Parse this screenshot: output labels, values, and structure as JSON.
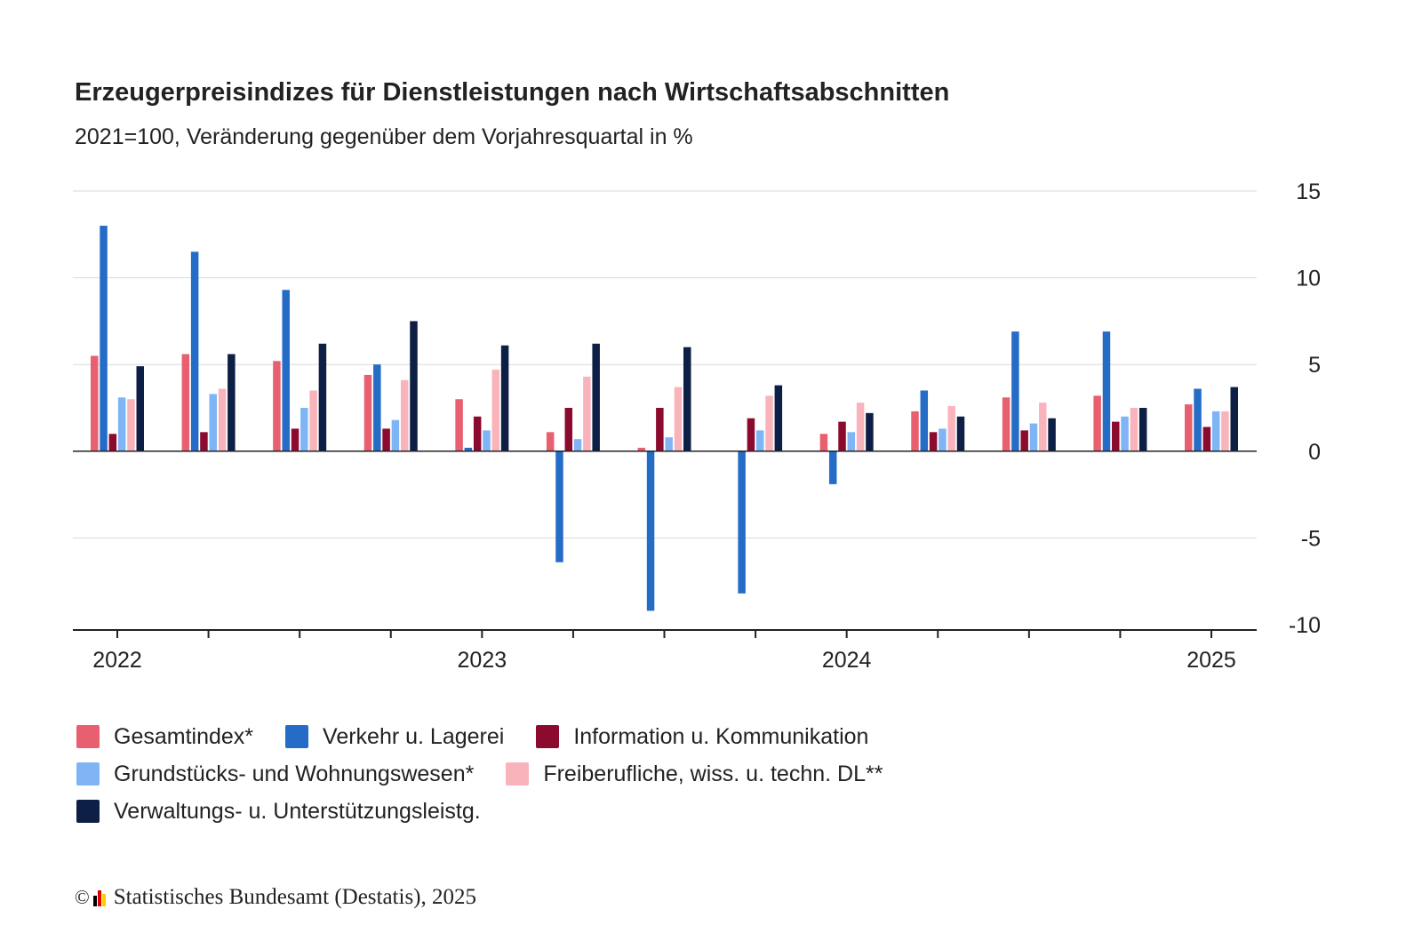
{
  "header": {
    "title": "Erzeugerpreisindizes für Dienstleistungen nach Wirtschaftsabschnitten",
    "subtitle": "2021=100, Veränderung gegenüber dem Vorjahresquartal in %"
  },
  "footer": {
    "copyright_symbol": "©",
    "source": "Statistisches Bundesamt (Destatis), 2025",
    "logo_colors": [
      "#000000",
      "#dd0000",
      "#ffcc00"
    ]
  },
  "chart_data": {
    "type": "bar",
    "title": "Erzeugerpreisindizes für Dienstleistungen nach Wirtschaftsabschnitten",
    "subtitle": "2021=100, Veränderung gegenüber dem Vorjahresquartal in %",
    "categories": [
      "2022 Q1",
      "2022 Q2",
      "2022 Q3",
      "2022 Q4",
      "2023 Q1",
      "2023 Q2",
      "2023 Q3",
      "2023 Q4",
      "2024 Q1",
      "2024 Q2",
      "2024 Q3",
      "2024 Q4",
      "2025 Q1"
    ],
    "x_tick_labels": [
      {
        "label": "2022",
        "category_index": 0
      },
      {
        "label": "2023",
        "category_index": 4
      },
      {
        "label": "2024",
        "category_index": 8
      },
      {
        "label": "2025",
        "category_index": 12
      }
    ],
    "ylim": [
      -10,
      15
    ],
    "y_ticks": [
      15,
      10,
      5,
      0,
      -5,
      -10
    ],
    "y_axis_position": "right",
    "grid": true,
    "legend_position": "bottom",
    "series": [
      {
        "name": "Gesamtindex*",
        "color": "#e8606f",
        "values": [
          5.5,
          5.6,
          5.2,
          4.4,
          3.0,
          1.1,
          0.2,
          null,
          1.0,
          2.3,
          3.1,
          3.2,
          2.7
        ]
      },
      {
        "name": "Verkehr u. Lagerei",
        "color": "#256cc7",
        "values": [
          13.0,
          11.5,
          9.3,
          5.0,
          0.2,
          -6.4,
          -9.2,
          -8.2,
          -1.9,
          3.5,
          6.9,
          6.9,
          3.6
        ]
      },
      {
        "name": "Information u. Kommunikation",
        "color": "#8b0a2e",
        "values": [
          1.0,
          1.1,
          1.3,
          1.3,
          2.0,
          2.5,
          2.5,
          1.9,
          1.7,
          1.1,
          1.2,
          1.7,
          1.4
        ]
      },
      {
        "name": "Grundstücks- und Wohnungswesen*",
        "color": "#7fb5f5",
        "values": [
          3.1,
          3.3,
          2.5,
          1.8,
          1.2,
          0.7,
          0.8,
          1.2,
          1.1,
          1.3,
          1.6,
          2.0,
          2.3
        ]
      },
      {
        "name": "Freiberufliche, wiss. u. techn. DL**",
        "color": "#f9b4bb",
        "values": [
          3.0,
          3.6,
          3.5,
          4.1,
          4.7,
          4.3,
          3.7,
          3.2,
          2.8,
          2.6,
          2.8,
          2.5,
          2.3
        ]
      },
      {
        "name": "Verwaltungs- u. Unterstützungsleistg.",
        "color": "#0d1f44",
        "values": [
          4.9,
          5.6,
          6.2,
          7.5,
          6.1,
          6.2,
          6.0,
          3.8,
          2.2,
          2.0,
          1.9,
          2.5,
          3.7
        ]
      }
    ]
  }
}
